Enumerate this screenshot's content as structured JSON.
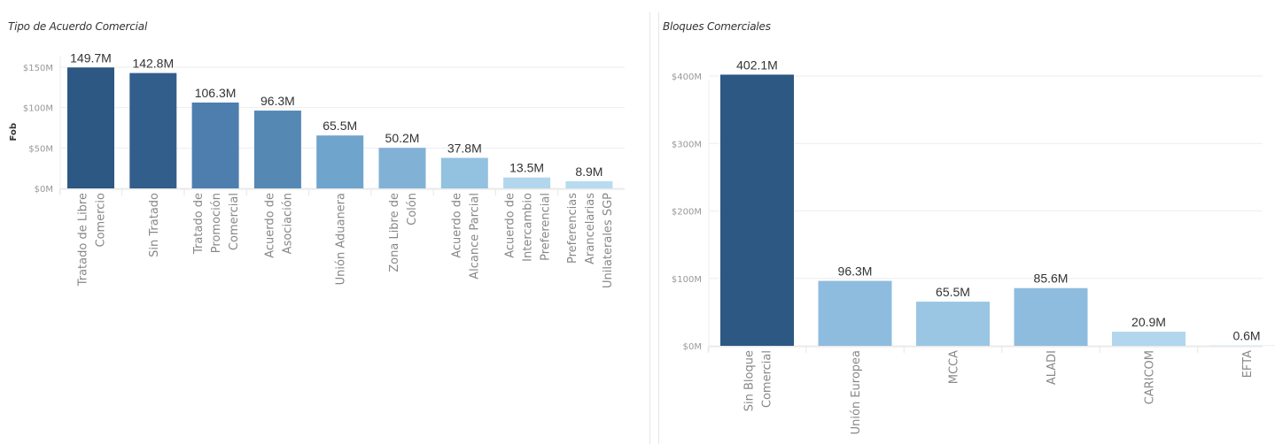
{
  "chart_data": [
    {
      "type": "bar",
      "title": "Tipo de Acuerdo Comercial",
      "xlabel": "",
      "ylabel": "Fob",
      "ylim": [
        0,
        160
      ],
      "yticks": [
        0,
        50,
        100,
        150
      ],
      "ytick_labels": [
        "$0M",
        "$50M",
        "$100M",
        "$150M"
      ],
      "grid": true,
      "categories": [
        [
          "Tratado de Libre",
          "Comercio"
        ],
        [
          "Sin Tratado"
        ],
        [
          "Tratado de",
          "Promoción",
          "Comercial"
        ],
        [
          "Acuerdo de",
          "Asociación"
        ],
        [
          "Unión Aduanera"
        ],
        [
          "Zona Libre de",
          "Colón"
        ],
        [
          "Acuerdo de",
          "Alcance Parcial"
        ],
        [
          "Acuerdo de",
          "Intercambio",
          "Preferencial"
        ],
        [
          "Preferencias",
          "Arancelarias",
          "Unilaterales SGP"
        ]
      ],
      "values": [
        149.7,
        142.8,
        106.3,
        96.3,
        65.5,
        50.2,
        37.8,
        13.5,
        8.9
      ],
      "data_labels": [
        "149.7M",
        "142.8M",
        "106.3M",
        "96.3M",
        "65.5M",
        "50.2M",
        "37.8M",
        "13.5M",
        "8.9M"
      ],
      "colors": [
        "#2c5883",
        "#325e8b",
        "#4d7ead",
        "#5589b4",
        "#6fa4cc",
        "#82b1d6",
        "#93c1e0",
        "#b1d6ed",
        "#b7dbef"
      ]
    },
    {
      "type": "bar",
      "title": "Bloques Comerciales",
      "xlabel": "",
      "ylabel": "",
      "ylim": [
        0,
        420
      ],
      "yticks": [
        0,
        100,
        200,
        300,
        400
      ],
      "ytick_labels": [
        "$0M",
        "$100M",
        "$200M",
        "$300M",
        "$400M"
      ],
      "grid": true,
      "categories": [
        [
          "Sin Bloque",
          "Comercial"
        ],
        [
          "Unión Europea"
        ],
        [
          "MCCA"
        ],
        [
          "ALADI"
        ],
        [
          "CARICOM"
        ],
        [
          "EFTA"
        ]
      ],
      "values": [
        402.1,
        96.3,
        65.5,
        85.6,
        20.9,
        0.6
      ],
      "data_labels": [
        "402.1M",
        "96.3M",
        "65.5M",
        "85.6M",
        "20.9M",
        "0.6M"
      ],
      "colors": [
        "#2c5883",
        "#8ebcde",
        "#9ac6e4",
        "#8ebcde",
        "#b1d6ed",
        "#c6e2f2"
      ]
    }
  ]
}
